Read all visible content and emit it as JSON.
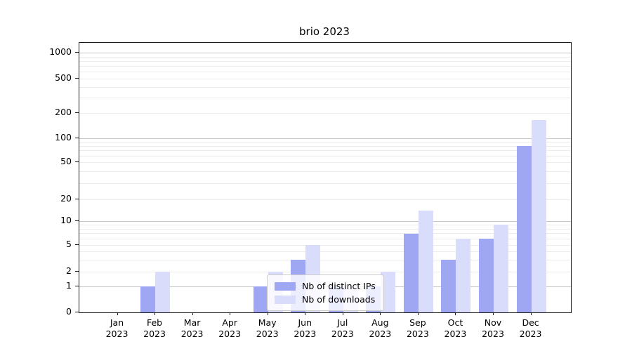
{
  "chart_data": {
    "type": "bar",
    "title": "brio 2023",
    "categories": [
      "Jan",
      "Feb",
      "Mar",
      "Apr",
      "May",
      "Jun",
      "Jul",
      "Aug",
      "Sep",
      "Oct",
      "Nov",
      "Dec"
    ],
    "year_label": "2023",
    "series": [
      {
        "name": "Nb of distinct IPs",
        "color": "#9fa6f2",
        "values": [
          0,
          1,
          0,
          0,
          1,
          3,
          1,
          1,
          7,
          3,
          6,
          80
        ]
      },
      {
        "name": "Nb of downloads",
        "color": "#d9dcfa",
        "values": [
          0,
          2,
          0,
          0,
          2,
          5,
          1,
          2,
          14,
          6,
          9,
          165
        ]
      }
    ],
    "y_axis": {
      "scale": "symlog",
      "ticks": [
        0,
        1,
        2,
        5,
        10,
        20,
        50,
        100,
        200,
        500,
        1000
      ],
      "major_grid_at": [
        1,
        10,
        100,
        1000
      ]
    },
    "x_axis": {
      "months": 12
    },
    "legend": {
      "entries": [
        "Nb of distinct IPs",
        "Nb of downloads"
      ],
      "position": "lower-center-inside"
    },
    "grid": true,
    "colors": {
      "grid_major": "#c6c6c6",
      "grid_minor": "#ececec",
      "axis": "#1a1a1a",
      "background": "#ffffff"
    }
  }
}
